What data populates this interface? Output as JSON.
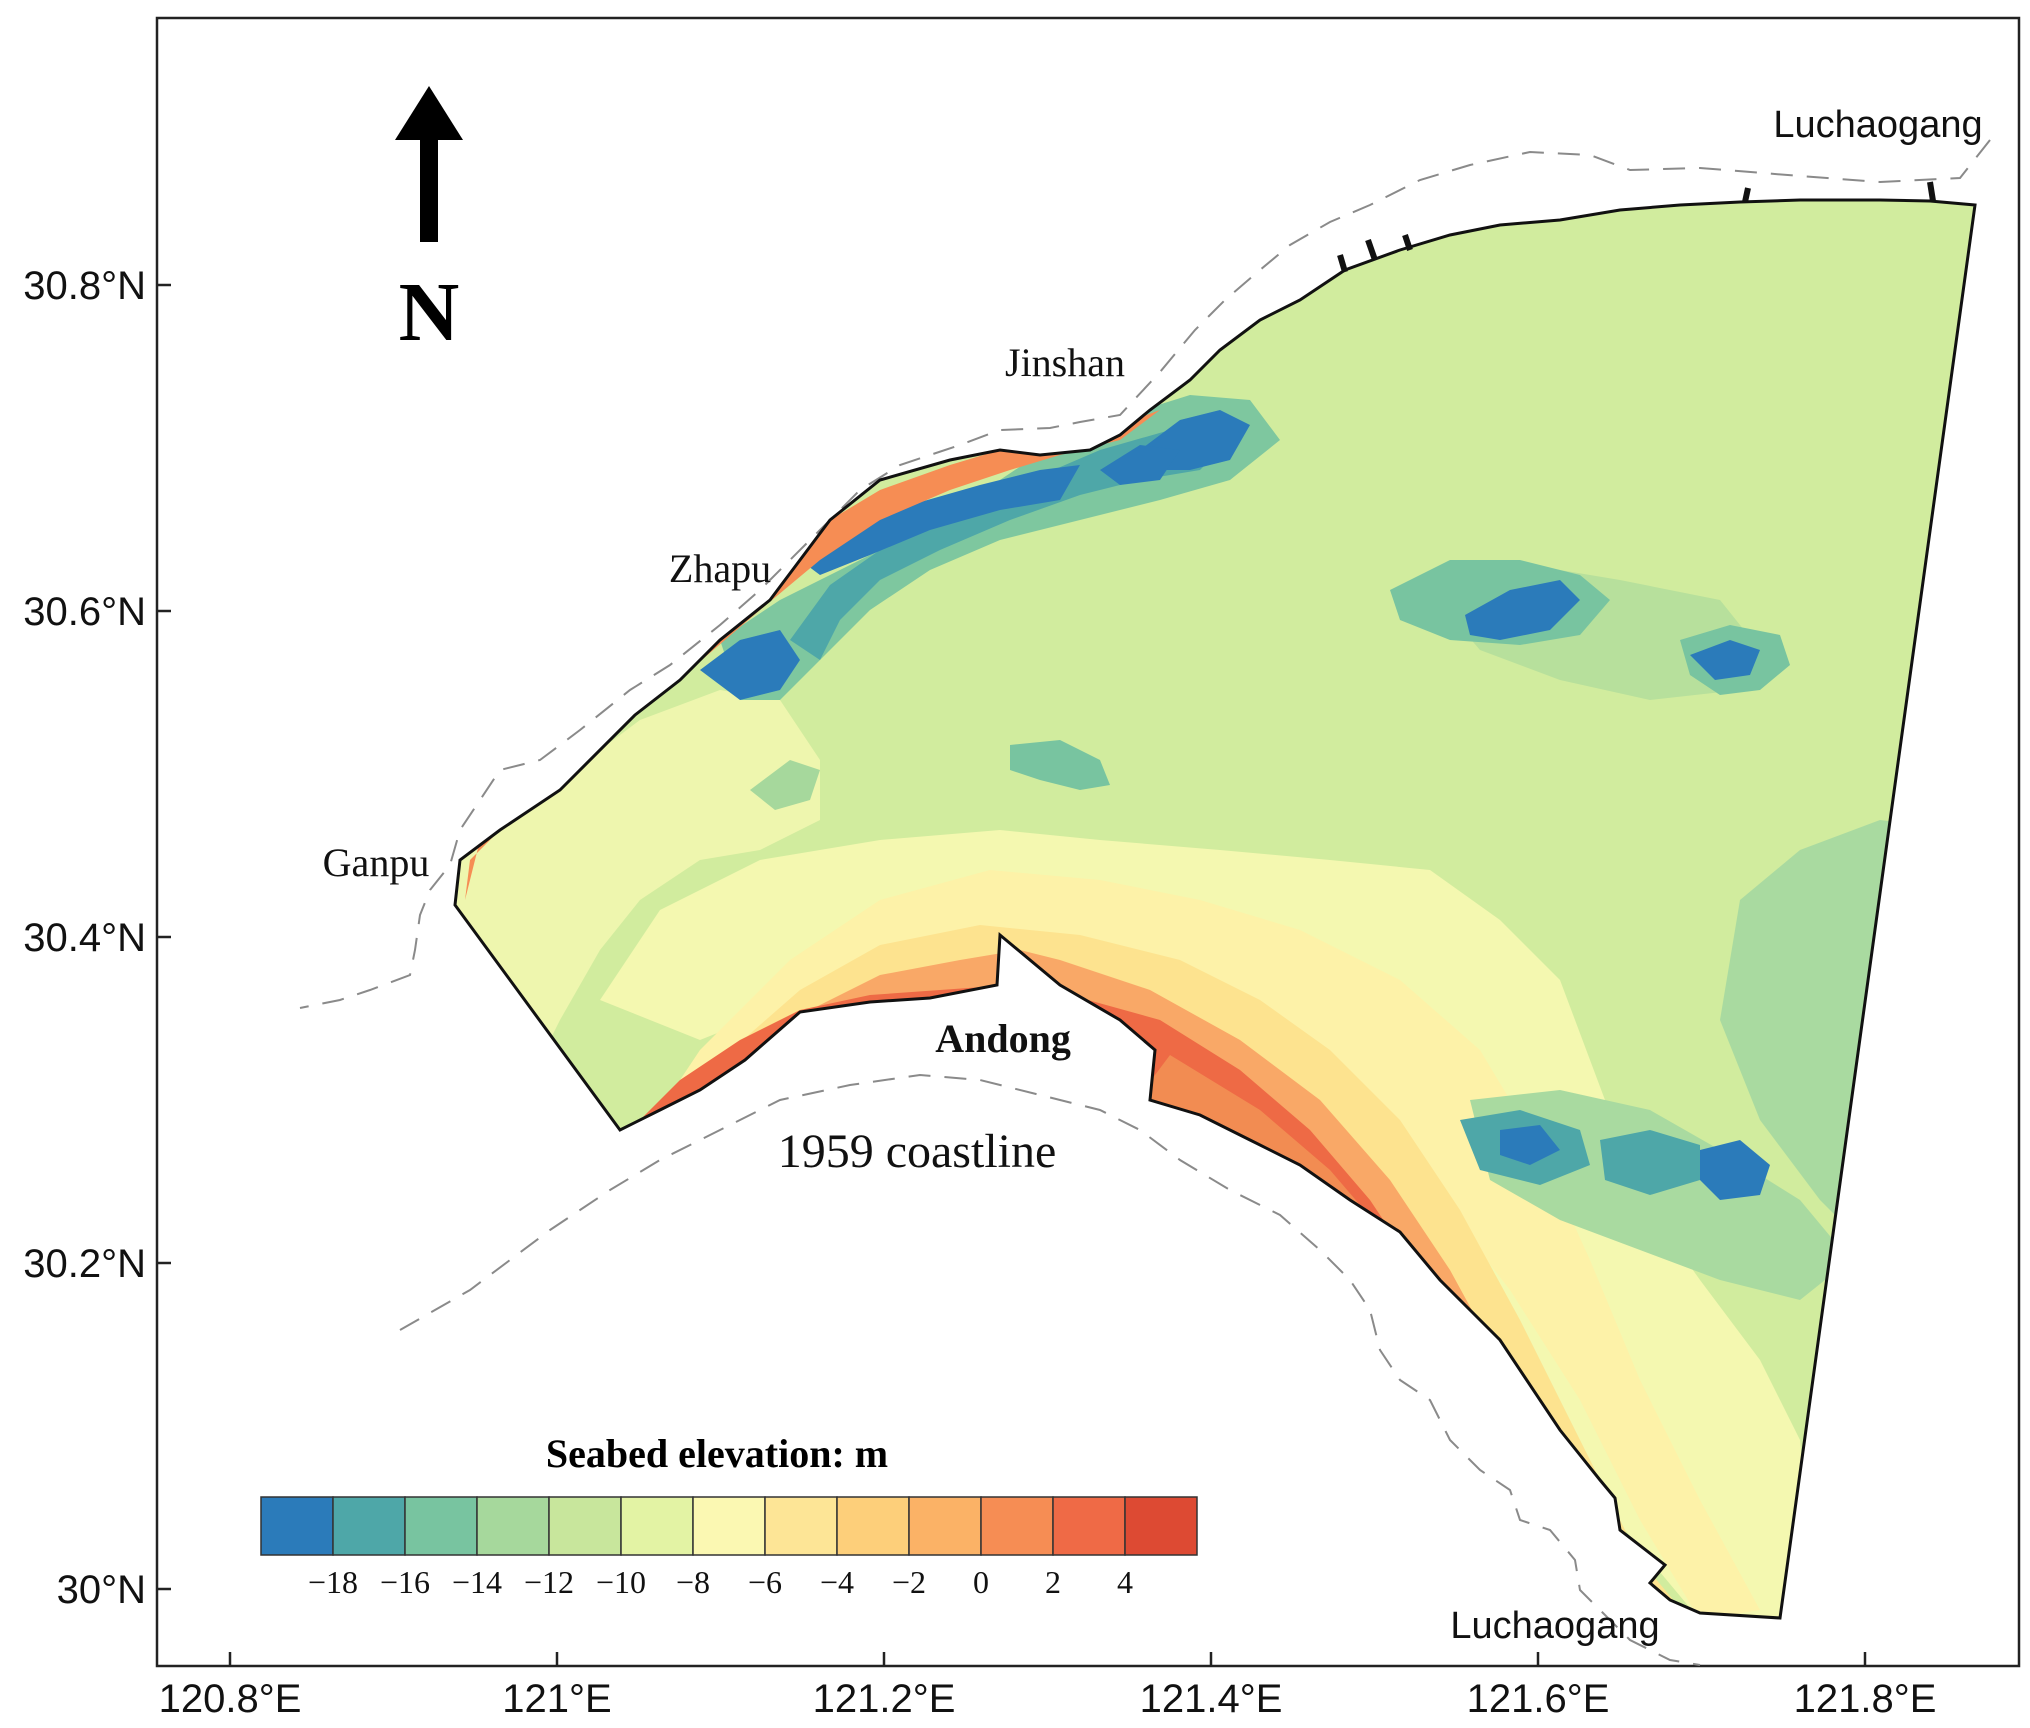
{
  "map": {
    "north_label": "N",
    "colorbar_title": "Seabed elevation: m",
    "colorbar_ticks": [
      "−18",
      "−16",
      "−14",
      "−12",
      "−10",
      "−8",
      "−6",
      "−4",
      "−2",
      "0",
      "2",
      "4"
    ],
    "colorbar_colors": [
      "#2b7bba",
      "#4ea7a8",
      "#78c4a0",
      "#a6d89c",
      "#c8e69c",
      "#e3f3a4",
      "#fbf8b2",
      "#fde596",
      "#fdcf7a",
      "#fbb266",
      "#f68d54",
      "#ef6a46",
      "#dd4a33"
    ],
    "x_ticks": [
      "120.8°E",
      "121°E",
      "121.2°E",
      "121.4°E",
      "121.6°E",
      "121.8°E"
    ],
    "y_ticks": [
      "30.8°N",
      "30.6°N",
      "30.4°N",
      "30.2°N",
      "30°N"
    ],
    "places": {
      "luchaogang_north": "Luchaogang",
      "jinshan": "Jinshan",
      "zhapu": "Zhapu",
      "ganpu": "Ganpu",
      "andong": "Andong",
      "coastline_1959": "1959 coastline",
      "luchaogang_south": "Luchaogang"
    }
  }
}
